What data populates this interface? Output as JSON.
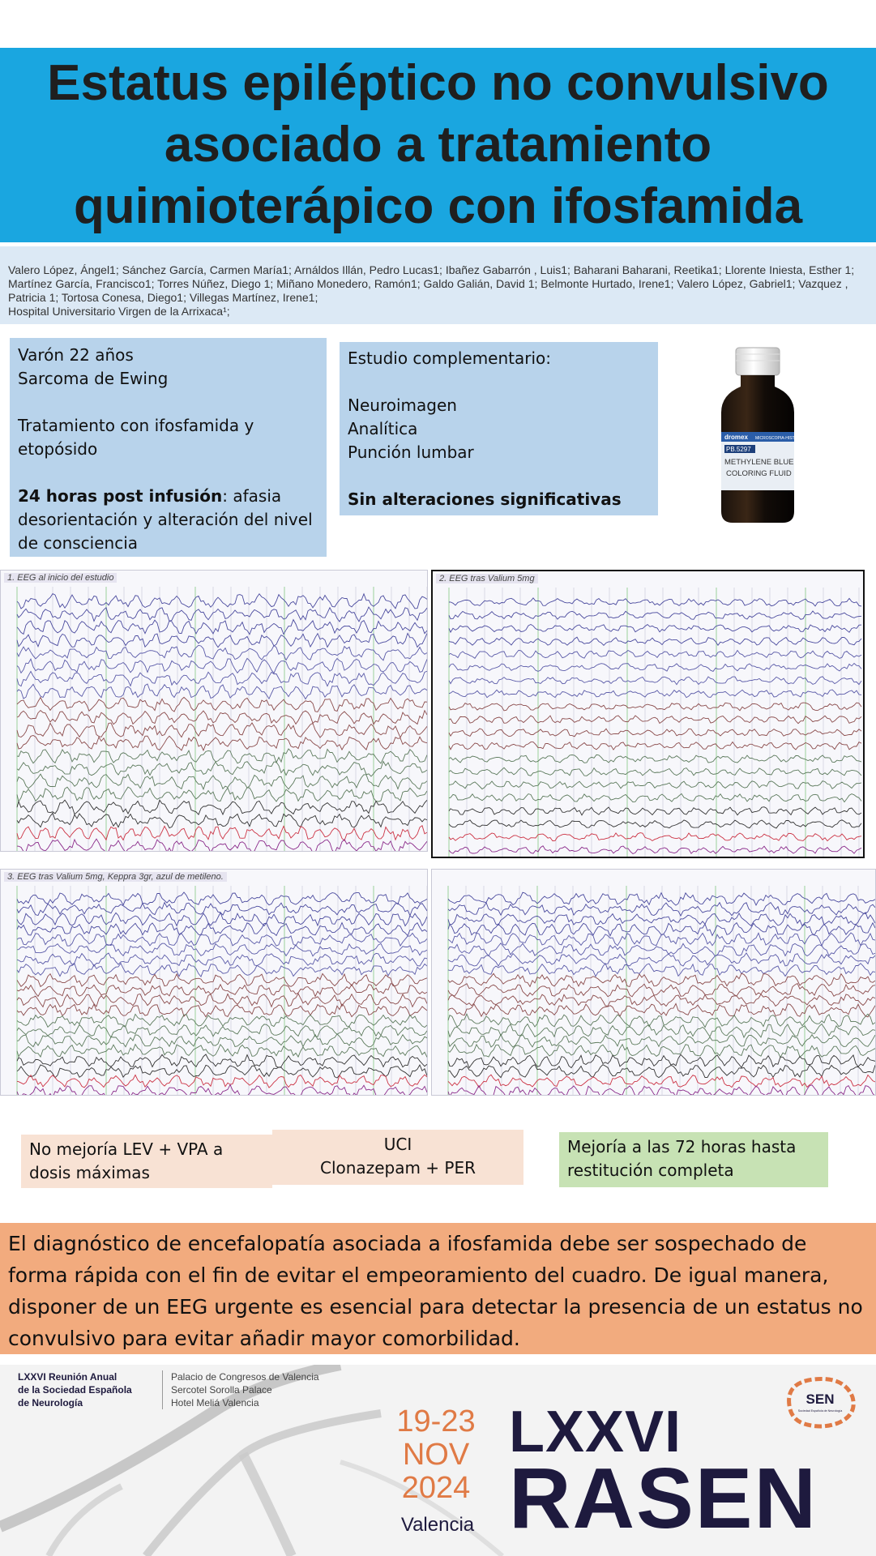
{
  "title": {
    "line1": "Estatus epiléptico no convulsivo",
    "line2": "asociado a tratamiento",
    "line3": "quimioterápico con ifosfamida"
  },
  "authors": {
    "text": "Valero López, Ángel1; Sánchez García, Carmen María1; Arnáldos Illán, Pedro Lucas1; Ibañez Gabarrón , Luis1; Baharani Baharani, Reetika1; Llorente Iniesta, Esther 1; Martínez García, Francisco1; Torres Núñez, Diego 1; Miñano Monedero, Ramón1; Galdo Galián, David 1; Belmonte Hurtado, Irene1; Valero López, Gabriel1; Vazquez , Patricia 1; Tortosa Conesa, Diego1; Villegas Martínez, Irene1;",
    "affiliation": "Hospital Universitario Virgen de la Arrixaca¹;"
  },
  "case": {
    "line1": "Varón 22 años",
    "line2": "Sarcoma de Ewing",
    "line3": "Tratamiento con ifosfamida y etopósido",
    "post_bold": "24 horas post infusión",
    "post_rest": ": afasia desorientación y alteración del nivel de consciencia"
  },
  "study": {
    "heading": "Estudio complementario:",
    "items": [
      "Neuroimagen",
      "Analítica",
      "Punción lumbar"
    ],
    "result": "Sin alteraciones significativas"
  },
  "bottle": {
    "brand": "dromex",
    "brand_sub": "MICROSCOPIA-HISTO",
    "code": "PB.5297",
    "name_line1": "METHYLENE BLUE",
    "name_line2": "COLORING FLUID"
  },
  "eeg": {
    "panel1_label": "1. EEG al inicio del estudio",
    "panel2_label": "2. EEG tras Valium 5mg",
    "panel3_label": "3. EEG tras Valium 5mg, Keppra 3gr, azul de metileno.",
    "panel4_label": ""
  },
  "steps": {
    "step1": "No mejoría LEV + VPA a dosis máximas",
    "step2_line1": "UCI",
    "step2_line2": "Clonazepam + PER",
    "step3": "Mejoría a las 72 horas hasta restitución completa"
  },
  "conclusion": "El diagnóstico de encefalopatía asociada a ifosfamida debe ser sospechado de forma rápida con el fin de evitar el empeoramiento del cuadro. De igual manera, disponer de un EEG urgente es esencial para detectar la presencia de un estatus no convulsivo para evitar añadir mayor comorbilidad.",
  "footer": {
    "org_line1": "LXXVI Reunión Anual",
    "org_line2": "de la Sociedad Española",
    "org_line3": "de Neurología",
    "venue_line1": "Palacio de Congresos de Valencia",
    "venue_line2": "Sercotel Sorolla Palace",
    "venue_line3": "Hotel Meliá Valencia",
    "dates_line1": "19-23",
    "dates_line2": "NOV",
    "dates_line3": "2024",
    "city": "Valencia",
    "edition": "LXXVI",
    "event": "RASEN",
    "logo_text": "SEN",
    "logo_sub": "Sociedad Española de Neurología"
  },
  "colors": {
    "title_band": "#1aa6e0",
    "authors_band": "#dce9f5",
    "info_box": "#b8d3eb",
    "step_peach": "#f8e2d4",
    "step_green": "#c7e2b4",
    "conclusion": "#f2ab7e",
    "brand_navy": "#1e1a3e",
    "brand_orange": "#e07a45"
  }
}
